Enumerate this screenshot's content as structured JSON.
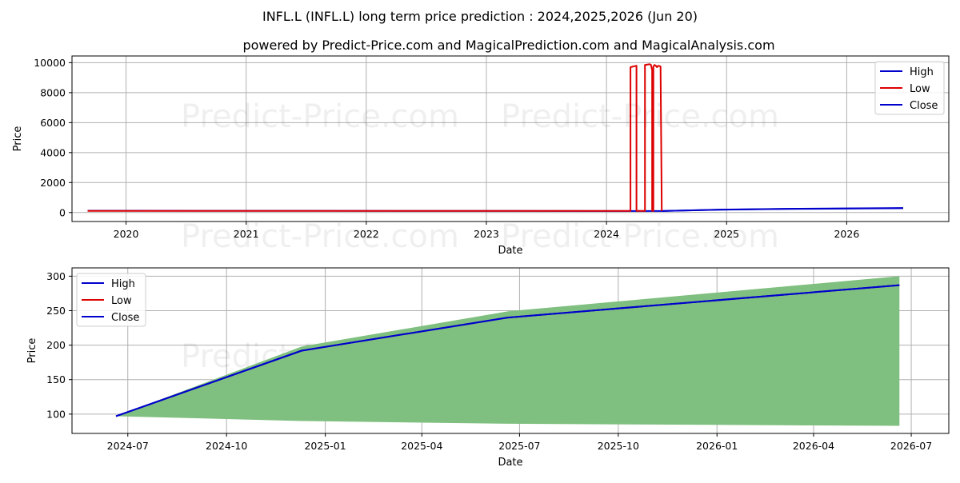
{
  "title": "INFL.L (INFL.L) long term price prediction : 2024,2025,2026 (Jun 20)",
  "subtitle": "powered by Predict-Price.com and MagicalPrediction.com and MagicalAnalysis.com",
  "watermark": "Predict-Price.com",
  "colors": {
    "high": "#0000cc",
    "low": "#dd0000",
    "close": "#0000cc",
    "fill": "#7fbf7f"
  },
  "chart_data": [
    {
      "type": "line",
      "xlabel": "Date",
      "ylabel": "Price",
      "xlim": [
        2019.55,
        2026.85
      ],
      "ylim": [
        -600,
        10450
      ],
      "x_ticks": [
        2020,
        2021,
        2022,
        2023,
        2024,
        2025,
        2026
      ],
      "x_tick_labels": [
        "2020",
        "2021",
        "2022",
        "2023",
        "2024",
        "2025",
        "2026"
      ],
      "y_ticks": [
        0,
        2000,
        4000,
        6000,
        8000,
        10000
      ],
      "y_tick_labels": [
        "0",
        "2000",
        "4000",
        "6000",
        "8000",
        "10000"
      ],
      "grid": true,
      "legend_position": "top-right",
      "series": [
        {
          "name": "High",
          "x": [
            2019.68,
            2024.46,
            2024.95,
            2025.5,
            2026.47
          ],
          "y": [
            120,
            97,
            198,
            248,
            300
          ]
        },
        {
          "name": "Low",
          "x": [
            2019.68,
            2024.2,
            2024.2,
            2024.25,
            2024.25,
            2024.32,
            2024.32,
            2024.36,
            2024.37,
            2024.38,
            2024.38,
            2024.39,
            2024.39,
            2024.4,
            2024.41,
            2024.42,
            2024.43,
            2024.44,
            2024.45,
            2024.46
          ],
          "y": [
            110,
            110,
            9700,
            9800,
            110,
            110,
            9850,
            9900,
            9850,
            9500,
            110,
            110,
            9750,
            9850,
            9800,
            9700,
            9800,
            9780,
            9750,
            97
          ]
        },
        {
          "name": "Close",
          "x": [
            2024.46,
            2024.95,
            2025.5,
            2026.47
          ],
          "y": [
            97,
            192,
            240,
            287
          ]
        }
      ]
    },
    {
      "type": "area",
      "xlabel": "Date",
      "ylabel": "Price",
      "xlim": [
        "2024-05-10",
        "2026-08-05"
      ],
      "ylim": [
        72,
        312
      ],
      "x_ticks": [
        "2024-07-01",
        "2024-10-01",
        "2025-01-01",
        "2025-04-01",
        "2025-07-01",
        "2025-10-01",
        "2026-01-01",
        "2026-04-01",
        "2026-07-01"
      ],
      "x_tick_labels": [
        "2024-07",
        "2024-10",
        "2025-01",
        "2025-04",
        "2025-07",
        "2025-10",
        "2026-01",
        "2026-04",
        "2026-07"
      ],
      "y_ticks": [
        100,
        150,
        200,
        250,
        300
      ],
      "y_tick_labels": [
        "100",
        "150",
        "200",
        "250",
        "300"
      ],
      "grid": true,
      "legend_position": "top-left",
      "band": {
        "x": [
          "2024-06-20",
          "2024-12-10",
          "2025-06-20",
          "2026-06-20"
        ],
        "upper": [
          97,
          198,
          249,
          300
        ],
        "lower": [
          97,
          90,
          86,
          83
        ]
      },
      "series": [
        {
          "name": "High",
          "x": [
            "2024-06-20",
            "2024-12-10",
            "2025-06-20",
            "2026-06-20"
          ],
          "y": [
            97,
            192,
            240,
            287
          ]
        },
        {
          "name": "Low",
          "x": [],
          "y": []
        },
        {
          "name": "Close",
          "x": [
            "2024-06-20",
            "2024-12-10",
            "2025-06-20",
            "2026-06-20"
          ],
          "y": [
            97,
            192,
            240,
            287
          ]
        }
      ]
    }
  ]
}
